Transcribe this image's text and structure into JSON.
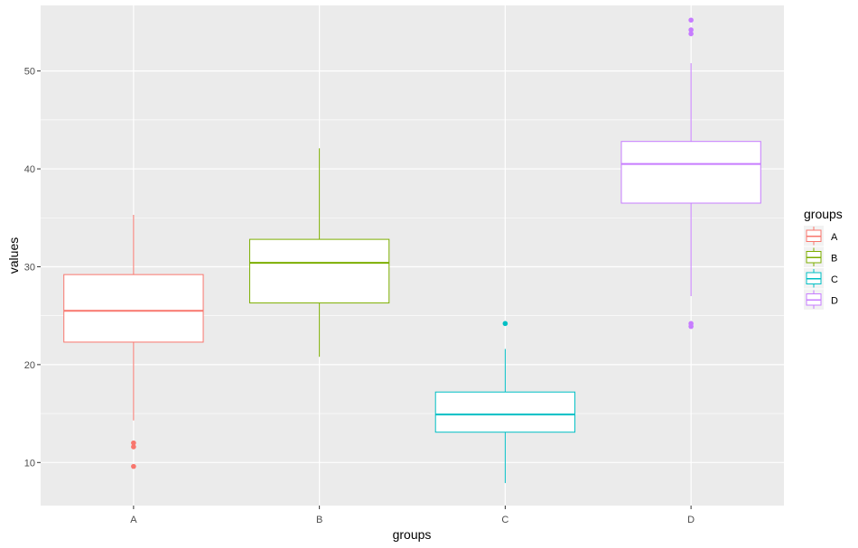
{
  "chart_data": {
    "type": "boxplot",
    "xlabel": "groups",
    "ylabel": "values",
    "categories": [
      "A",
      "B",
      "C",
      "D"
    ],
    "ylim": [
      5.6,
      56.7
    ],
    "y_ticks": [
      10,
      20,
      30,
      40,
      50
    ],
    "grid": true,
    "legend": {
      "title": "groups",
      "position": "right",
      "entries": [
        "A",
        "B",
        "C",
        "D"
      ]
    },
    "colors": {
      "A": "#F8766D",
      "B": "#7CAE00",
      "C": "#00BFC4",
      "D": "#C77CFF"
    },
    "boxes": [
      {
        "group": "A",
        "q1": 22.3,
        "median": 25.5,
        "q3": 29.2,
        "whisker_low": 14.3,
        "whisker_high": 35.3,
        "outliers": [
          12.0,
          11.6,
          9.6
        ]
      },
      {
        "group": "B",
        "q1": 26.3,
        "median": 30.4,
        "q3": 32.8,
        "whisker_low": 20.8,
        "whisker_high": 42.1,
        "outliers": []
      },
      {
        "group": "C",
        "q1": 13.1,
        "median": 14.9,
        "q3": 17.2,
        "whisker_low": 7.9,
        "whisker_high": 21.6,
        "outliers": [
          24.2
        ]
      },
      {
        "group": "D",
        "q1": 36.5,
        "median": 40.5,
        "q3": 42.8,
        "whisker_low": 27.0,
        "whisker_high": 50.8,
        "outliers": [
          55.2,
          54.2,
          53.8,
          24.2,
          23.9
        ]
      }
    ]
  }
}
